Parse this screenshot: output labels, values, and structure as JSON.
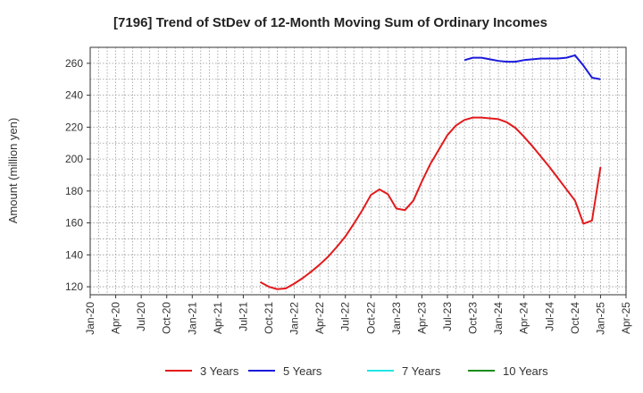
{
  "chart_data": {
    "type": "line",
    "title": "[7196]  Trend of StDev of 12-Month Moving Sum of Ordinary Incomes",
    "xlabel": "",
    "ylabel": "Amount (million yen)",
    "ylim": [
      115,
      270
    ],
    "yticks": [
      120,
      140,
      160,
      180,
      200,
      220,
      240,
      260
    ],
    "xticks": [
      "Jan-20",
      "Apr-20",
      "Jul-20",
      "Oct-20",
      "Jan-21",
      "Apr-21",
      "Jul-21",
      "Oct-21",
      "Jan-22",
      "Apr-22",
      "Jul-22",
      "Oct-22",
      "Jan-23",
      "Apr-23",
      "Jul-23",
      "Oct-23",
      "Jan-24",
      "Apr-24",
      "Jul-24",
      "Oct-24",
      "Jan-25",
      "Apr-25"
    ],
    "grid": true,
    "legend_position": "bottom",
    "series": [
      {
        "name": "3 Years",
        "color": "#e31a1c",
        "points": [
          [
            "2021-09",
            123
          ],
          [
            "2021-10",
            120
          ],
          [
            "2021-11",
            118.5
          ],
          [
            "2021-12",
            119
          ],
          [
            "2022-01",
            122
          ],
          [
            "2022-02",
            125.5
          ],
          [
            "2022-03",
            129.5
          ],
          [
            "2022-04",
            134
          ],
          [
            "2022-05",
            139
          ],
          [
            "2022-06",
            145
          ],
          [
            "2022-07",
            151.5
          ],
          [
            "2022-08",
            159.5
          ],
          [
            "2022-09",
            168
          ],
          [
            "2022-10",
            177.5
          ],
          [
            "2022-11",
            181
          ],
          [
            "2022-12",
            178
          ],
          [
            "2023-01",
            169
          ],
          [
            "2023-02",
            168
          ],
          [
            "2023-03",
            174
          ],
          [
            "2023-04",
            186
          ],
          [
            "2023-05",
            197
          ],
          [
            "2023-06",
            206
          ],
          [
            "2023-07",
            215
          ],
          [
            "2023-08",
            221
          ],
          [
            "2023-09",
            224.5
          ],
          [
            "2023-10",
            226
          ],
          [
            "2023-11",
            226
          ],
          [
            "2023-12",
            225.5
          ],
          [
            "2024-01",
            225
          ],
          [
            "2024-02",
            223
          ],
          [
            "2024-03",
            219.5
          ],
          [
            "2024-04",
            214
          ],
          [
            "2024-05",
            208
          ],
          [
            "2024-06",
            201.5
          ],
          [
            "2024-07",
            195
          ],
          [
            "2024-08",
            188
          ],
          [
            "2024-09",
            181
          ],
          [
            "2024-10",
            174
          ],
          [
            "2024-11",
            159.5
          ],
          [
            "2024-12",
            161.5
          ],
          [
            "2025-01",
            195
          ]
        ]
      },
      {
        "name": "5 Years",
        "color": "#1a1adc",
        "points": [
          [
            "2023-09",
            262
          ],
          [
            "2023-10",
            263.5
          ],
          [
            "2023-11",
            263.5
          ],
          [
            "2023-12",
            262.5
          ],
          [
            "2024-01",
            261.5
          ],
          [
            "2024-02",
            261
          ],
          [
            "2024-03",
            261
          ],
          [
            "2024-04",
            262
          ],
          [
            "2024-05",
            262.5
          ],
          [
            "2024-06",
            263
          ],
          [
            "2024-07",
            263
          ],
          [
            "2024-08",
            263
          ],
          [
            "2024-09",
            263.5
          ],
          [
            "2024-10",
            265
          ],
          [
            "2024-11",
            258.5
          ],
          [
            "2024-12",
            251
          ],
          [
            "2025-01",
            250
          ]
        ]
      },
      {
        "name": "7 Years",
        "color": "#22e5e5",
        "points": []
      },
      {
        "name": "10 Years",
        "color": "#1a8c1a",
        "points": []
      }
    ]
  }
}
